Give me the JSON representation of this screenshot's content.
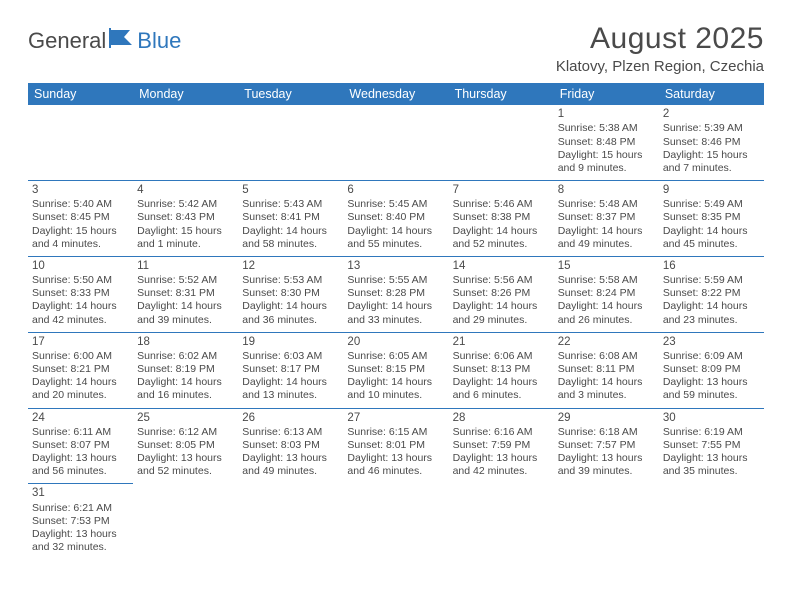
{
  "logo": {
    "text1": "General",
    "text2": "Blue"
  },
  "title": "August 2025",
  "location": "Klatovy, Plzen Region, Czechia",
  "colors": {
    "header_bg": "#2f77bc",
    "header_text": "#ffffff",
    "border": "#2f77bc",
    "text": "#4a4a4a",
    "background": "#ffffff"
  },
  "weekdays": [
    "Sunday",
    "Monday",
    "Tuesday",
    "Wednesday",
    "Thursday",
    "Friday",
    "Saturday"
  ],
  "weeks": [
    [
      null,
      null,
      null,
      null,
      null,
      {
        "d": "1",
        "sr": "5:38 AM",
        "ss": "8:48 PM",
        "dl": "15 hours and 9 minutes."
      },
      {
        "d": "2",
        "sr": "5:39 AM",
        "ss": "8:46 PM",
        "dl": "15 hours and 7 minutes."
      }
    ],
    [
      {
        "d": "3",
        "sr": "5:40 AM",
        "ss": "8:45 PM",
        "dl": "15 hours and 4 minutes."
      },
      {
        "d": "4",
        "sr": "5:42 AM",
        "ss": "8:43 PM",
        "dl": "15 hours and 1 minute."
      },
      {
        "d": "5",
        "sr": "5:43 AM",
        "ss": "8:41 PM",
        "dl": "14 hours and 58 minutes."
      },
      {
        "d": "6",
        "sr": "5:45 AM",
        "ss": "8:40 PM",
        "dl": "14 hours and 55 minutes."
      },
      {
        "d": "7",
        "sr": "5:46 AM",
        "ss": "8:38 PM",
        "dl": "14 hours and 52 minutes."
      },
      {
        "d": "8",
        "sr": "5:48 AM",
        "ss": "8:37 PM",
        "dl": "14 hours and 49 minutes."
      },
      {
        "d": "9",
        "sr": "5:49 AM",
        "ss": "8:35 PM",
        "dl": "14 hours and 45 minutes."
      }
    ],
    [
      {
        "d": "10",
        "sr": "5:50 AM",
        "ss": "8:33 PM",
        "dl": "14 hours and 42 minutes."
      },
      {
        "d": "11",
        "sr": "5:52 AM",
        "ss": "8:31 PM",
        "dl": "14 hours and 39 minutes."
      },
      {
        "d": "12",
        "sr": "5:53 AM",
        "ss": "8:30 PM",
        "dl": "14 hours and 36 minutes."
      },
      {
        "d": "13",
        "sr": "5:55 AM",
        "ss": "8:28 PM",
        "dl": "14 hours and 33 minutes."
      },
      {
        "d": "14",
        "sr": "5:56 AM",
        "ss": "8:26 PM",
        "dl": "14 hours and 29 minutes."
      },
      {
        "d": "15",
        "sr": "5:58 AM",
        "ss": "8:24 PM",
        "dl": "14 hours and 26 minutes."
      },
      {
        "d": "16",
        "sr": "5:59 AM",
        "ss": "8:22 PM",
        "dl": "14 hours and 23 minutes."
      }
    ],
    [
      {
        "d": "17",
        "sr": "6:00 AM",
        "ss": "8:21 PM",
        "dl": "14 hours and 20 minutes."
      },
      {
        "d": "18",
        "sr": "6:02 AM",
        "ss": "8:19 PM",
        "dl": "14 hours and 16 minutes."
      },
      {
        "d": "19",
        "sr": "6:03 AM",
        "ss": "8:17 PM",
        "dl": "14 hours and 13 minutes."
      },
      {
        "d": "20",
        "sr": "6:05 AM",
        "ss": "8:15 PM",
        "dl": "14 hours and 10 minutes."
      },
      {
        "d": "21",
        "sr": "6:06 AM",
        "ss": "8:13 PM",
        "dl": "14 hours and 6 minutes."
      },
      {
        "d": "22",
        "sr": "6:08 AM",
        "ss": "8:11 PM",
        "dl": "14 hours and 3 minutes."
      },
      {
        "d": "23",
        "sr": "6:09 AM",
        "ss": "8:09 PM",
        "dl": "13 hours and 59 minutes."
      }
    ],
    [
      {
        "d": "24",
        "sr": "6:11 AM",
        "ss": "8:07 PM",
        "dl": "13 hours and 56 minutes."
      },
      {
        "d": "25",
        "sr": "6:12 AM",
        "ss": "8:05 PM",
        "dl": "13 hours and 52 minutes."
      },
      {
        "d": "26",
        "sr": "6:13 AM",
        "ss": "8:03 PM",
        "dl": "13 hours and 49 minutes."
      },
      {
        "d": "27",
        "sr": "6:15 AM",
        "ss": "8:01 PM",
        "dl": "13 hours and 46 minutes."
      },
      {
        "d": "28",
        "sr": "6:16 AM",
        "ss": "7:59 PM",
        "dl": "13 hours and 42 minutes."
      },
      {
        "d": "29",
        "sr": "6:18 AM",
        "ss": "7:57 PM",
        "dl": "13 hours and 39 minutes."
      },
      {
        "d": "30",
        "sr": "6:19 AM",
        "ss": "7:55 PM",
        "dl": "13 hours and 35 minutes."
      }
    ],
    [
      {
        "d": "31",
        "sr": "6:21 AM",
        "ss": "7:53 PM",
        "dl": "13 hours and 32 minutes."
      },
      null,
      null,
      null,
      null,
      null,
      null
    ]
  ],
  "labels": {
    "sunrise": "Sunrise: ",
    "sunset": "Sunset: ",
    "daylight": "Daylight: "
  }
}
